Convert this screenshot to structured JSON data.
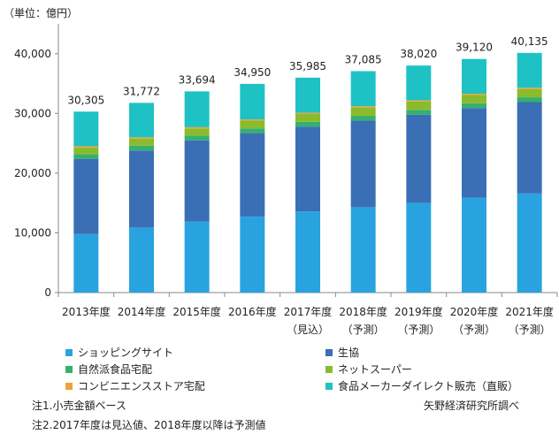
{
  "chart_data": {
    "type": "bar",
    "stacked": true,
    "unit_label": "（単位：億円）",
    "categories": [
      "2013年度",
      "2014年度",
      "2015年度",
      "2016年度",
      "2017年度",
      "2018年度",
      "2019年度",
      "2020年度",
      "2021年度"
    ],
    "category_sublabels": [
      "",
      "",
      "",
      "",
      "（見込）",
      "（予測）",
      "（予測）",
      "（予測）",
      "（予測）"
    ],
    "totals": [
      30305,
      31772,
      33694,
      34950,
      35985,
      37085,
      38020,
      39120,
      40135
    ],
    "total_labels": [
      "30,305",
      "31,772",
      "33,694",
      "34,950",
      "35,985",
      "37,085",
      "38,020",
      "39,120",
      "40,135"
    ],
    "ylim": [
      0,
      45000
    ],
    "yticks": [
      0,
      10000,
      20000,
      30000,
      40000
    ],
    "ytick_labels": [
      "0",
      "10,000",
      "20,000",
      "30,000",
      "40,000"
    ],
    "grid": false,
    "series": [
      {
        "name": "ショッピングサイト",
        "color": "#29a3df",
        "values": [
          9800,
          10900,
          11900,
          12700,
          13600,
          14300,
          15000,
          15900,
          16600
        ]
      },
      {
        "name": "生協",
        "color": "#3a6fb5",
        "values": [
          12600,
          12900,
          13600,
          14000,
          14200,
          14500,
          14800,
          15000,
          15300
        ]
      },
      {
        "name": "自然派食品宅配",
        "color": "#35b06f",
        "values": [
          800,
          800,
          800,
          800,
          800,
          800,
          800,
          800,
          800
        ]
      },
      {
        "name": "ネットスーパー",
        "color": "#8bbb2c",
        "values": [
          1100,
          1200,
          1200,
          1300,
          1300,
          1400,
          1400,
          1400,
          1400
        ]
      },
      {
        "name": "コンビニエンスストア宅配",
        "color": "#f0a13a",
        "values": [
          200,
          200,
          200,
          200,
          200,
          200,
          200,
          200,
          200
        ]
      },
      {
        "name": "食品メーカーダイレクト販売（直販）",
        "color": "#1ec2c4",
        "values": [
          5805,
          5772,
          5994,
          5950,
          5885,
          5885,
          5820,
          5820,
          5835
        ]
      }
    ]
  },
  "notes": {
    "note1": "注1.小売金額ベース",
    "note2": "注2.2017年度は見込値、2018年度以降は予測値",
    "source": "矢野経済研究所調べ"
  }
}
